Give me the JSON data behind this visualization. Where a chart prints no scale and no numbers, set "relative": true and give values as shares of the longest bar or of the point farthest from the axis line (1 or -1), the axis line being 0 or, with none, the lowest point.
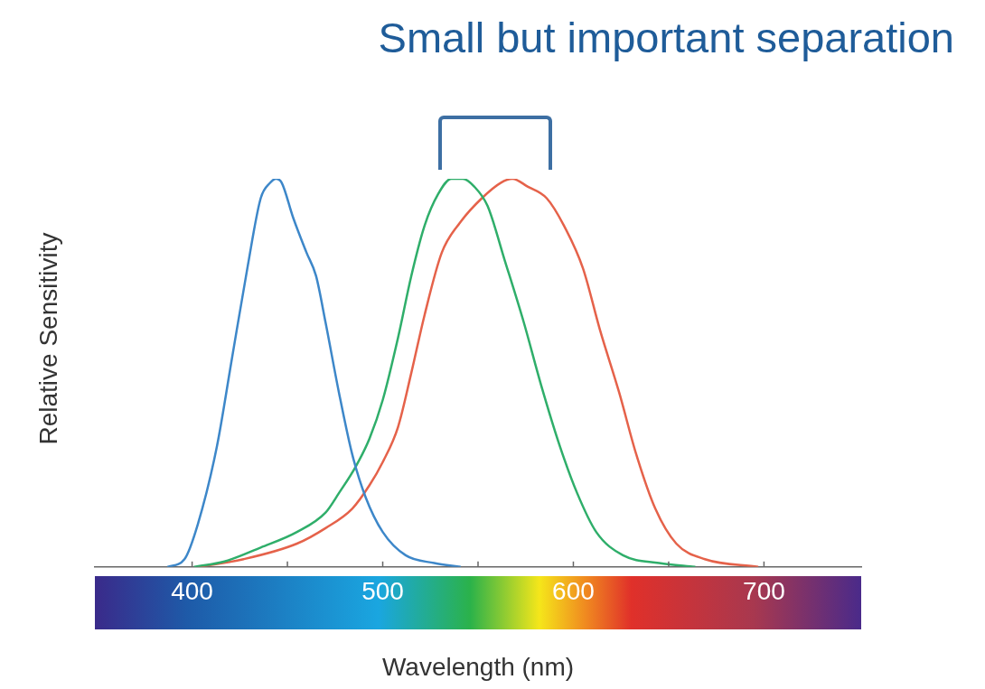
{
  "chart_data": {
    "type": "line",
    "title": "Small but important separation",
    "xlabel": "Wavelength (nm)",
    "ylabel": "Relative Sensitivity",
    "relative": true,
    "xlim": [
      349,
      751
    ],
    "xticks": [
      400,
      {
        "value": 450,
        "label": null
      },
      500,
      {
        "value": 550,
        "label": null
      },
      600,
      {
        "value": 650,
        "label": null
      },
      700
    ],
    "grid": false,
    "legend": false,
    "marker": "none",
    "line_style": "solid",
    "series": [
      {
        "color": "#3d87c9",
        "x": [
          387,
          396,
          403,
          413,
          421,
          429,
          436,
          441,
          444,
          447,
          453,
          460,
          465,
          470,
          477,
          484,
          491,
          500,
          512,
          527,
          541
        ],
        "values": [
          0,
          0.02,
          0.11,
          0.31,
          0.54,
          0.77,
          0.95,
          0.99,
          1.0,
          0.99,
          0.9,
          0.81,
          0.75,
          0.63,
          0.45,
          0.29,
          0.18,
          0.09,
          0.03,
          0.01,
          0
        ]
      },
      {
        "color": "#2fae6a",
        "x": [
          401,
          417,
          436,
          455,
          470,
          477,
          486,
          493,
          500,
          508,
          515,
          522,
          529,
          536,
          542,
          548,
          555,
          564,
          574,
          583,
          593,
          602,
          612,
          626,
          645,
          664
        ],
        "values": [
          0,
          0.014,
          0.05,
          0.09,
          0.14,
          0.19,
          0.26,
          0.33,
          0.43,
          0.59,
          0.75,
          0.88,
          0.96,
          1.0,
          1.0,
          0.98,
          0.93,
          0.79,
          0.63,
          0.47,
          0.31,
          0.19,
          0.09,
          0.03,
          0.01,
          0
        ]
      },
      {
        "color": "#e5624a",
        "x": [
          403,
          427,
          455,
          470,
          484,
          493,
          500,
          508,
          515,
          522,
          531,
          541,
          552,
          562,
          568,
          576,
          586,
          595,
          605,
          614,
          624,
          633,
          643,
          654,
          669,
          697
        ],
        "values": [
          0,
          0.02,
          0.06,
          0.1,
          0.15,
          0.21,
          0.27,
          0.36,
          0.5,
          0.65,
          0.81,
          0.89,
          0.95,
          0.99,
          1.0,
          0.98,
          0.95,
          0.88,
          0.77,
          0.61,
          0.45,
          0.29,
          0.15,
          0.06,
          0.02,
          0
        ]
      }
    ]
  }
}
